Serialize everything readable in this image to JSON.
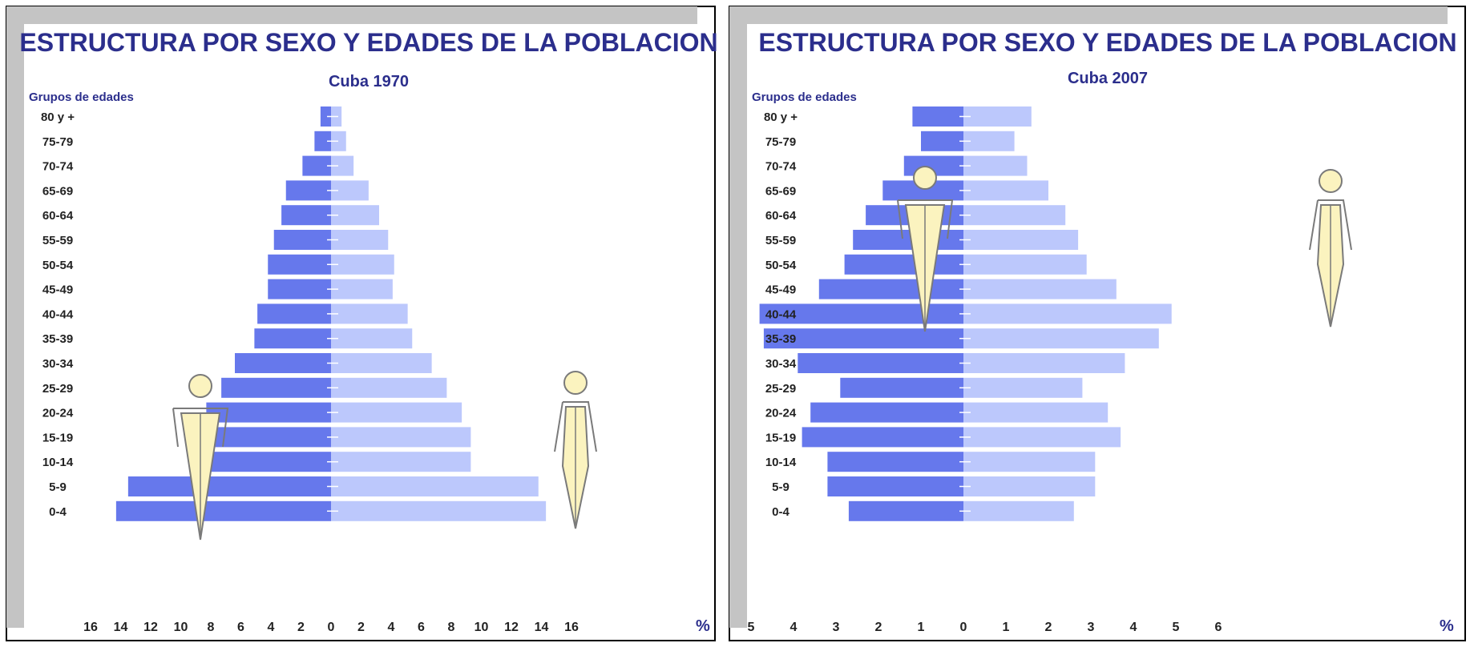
{
  "colors": {
    "male_bar": "#6678ec",
    "female_bar": "#bcc8fc",
    "title_text": "#2b2e8c",
    "frame_gray": "#c4c4c4",
    "border": "#000000",
    "figure_fill": "#fbf3bf",
    "figure_stroke": "#7a7a7a"
  },
  "icons": {
    "male": "male-figure-icon",
    "female": "female-figure-icon"
  },
  "chart_data": [
    {
      "type": "bar",
      "orientation": "horizontal-population-pyramid",
      "title": "ESTRUCTURA POR SEXO Y EDADES DE LA POBLACION",
      "subtitle": "Cuba 1970",
      "ylabel": "Grupos de edades",
      "xlabel": "%",
      "xlim": [
        0,
        16
      ],
      "x_ticks": [
        "16",
        "14",
        "12",
        "10",
        "8",
        "6",
        "4",
        "2",
        "0",
        "2",
        "4",
        "6",
        "8",
        "10",
        "12",
        "14",
        "16"
      ],
      "grid": false,
      "categories": [
        "80 y +",
        "75-79",
        "70-74",
        "65-69",
        "60-64",
        "55-59",
        "50-54",
        "45-49",
        "40-44",
        "35-39",
        "30-34",
        "25-29",
        "20-24",
        "15-19",
        "10-14",
        "5-9",
        "0-4"
      ],
      "series": [
        {
          "values": [
            0.7,
            1.1,
            1.9,
            3.0,
            3.3,
            3.8,
            4.2,
            4.2,
            4.9,
            5.1,
            6.4,
            7.3,
            8.3,
            8.9,
            9.0,
            13.5,
            14.3
          ]
        },
        {
          "values": [
            0.7,
            1.0,
            1.5,
            2.5,
            3.2,
            3.8,
            4.2,
            4.1,
            5.1,
            5.4,
            6.7,
            7.7,
            8.7,
            9.3,
            9.3,
            13.8,
            14.3
          ]
        }
      ]
    },
    {
      "type": "bar",
      "orientation": "horizontal-population-pyramid",
      "title": "ESTRUCTURA POR SEXO Y EDADES DE LA POBLACION",
      "subtitle": "Cuba 2007",
      "ylabel": "Grupos de edades",
      "xlabel": "%",
      "xlim": [
        0,
        6
      ],
      "x_ticks": [
        "6",
        "5",
        "4",
        "3",
        "2",
        "1",
        "0",
        "1",
        "2",
        "3",
        "4",
        "5",
        "6"
      ],
      "grid": false,
      "categories": [
        "80 y +",
        "75-79",
        "70-74",
        "65-69",
        "60-64",
        "55-59",
        "50-54",
        "45-49",
        "40-44",
        "35-39",
        "30-34",
        "25-29",
        "20-24",
        "15-19",
        "10-14",
        "5-9",
        "0-4"
      ],
      "series": [
        {
          "values": [
            1.2,
            1.0,
            1.4,
            1.9,
            2.3,
            2.6,
            2.8,
            3.4,
            4.8,
            4.7,
            3.9,
            2.9,
            3.6,
            3.8,
            3.2,
            3.2,
            2.7
          ]
        },
        {
          "values": [
            1.6,
            1.2,
            1.5,
            2.0,
            2.4,
            2.7,
            2.9,
            3.6,
            4.9,
            4.6,
            3.8,
            2.8,
            3.4,
            3.7,
            3.1,
            3.1,
            2.6
          ]
        }
      ]
    }
  ]
}
